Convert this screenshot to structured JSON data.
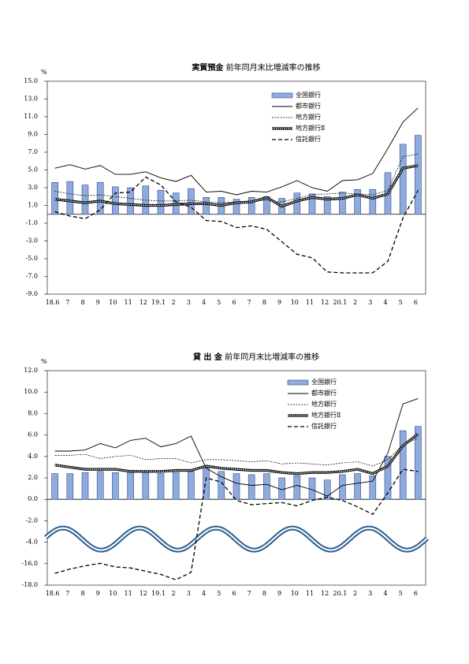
{
  "chart_data": [
    {
      "type": "bar",
      "title": "実質預金",
      "subtitle": "前年同月末比増減率の推移",
      "unit": "%",
      "categories": [
        "18.6",
        "7",
        "8",
        "9",
        "10",
        "11",
        "12",
        "19.1",
        "2",
        "3",
        "4",
        "5",
        "6",
        "7",
        "8",
        "9",
        "10",
        "11",
        "12",
        "20.1",
        "2",
        "3",
        "4",
        "5",
        "6"
      ],
      "ylim": [
        -9,
        15
      ],
      "yticks": [
        {
          "value": 15,
          "label": "15.0"
        },
        {
          "value": 13,
          "label": "13.0"
        },
        {
          "value": 11,
          "label": "11.0"
        },
        {
          "value": 9,
          "label": "9.0"
        },
        {
          "value": 7,
          "label": "7.0"
        },
        {
          "value": 5,
          "label": "5.0"
        },
        {
          "value": 3,
          "label": "3.0"
        },
        {
          "value": 1,
          "label": "1.0"
        },
        {
          "value": -1,
          "label": "-1.0"
        },
        {
          "value": -3,
          "label": "-3.0"
        },
        {
          "value": -5,
          "label": "-5.0"
        },
        {
          "value": -7,
          "label": "-7.0"
        },
        {
          "value": -9,
          "label": "-9.0"
        }
      ],
      "series": [
        {
          "name": "全国銀行",
          "style": "bar",
          "color": "#8faadc",
          "values": [
            3.6,
            3.7,
            3.3,
            3.6,
            3.1,
            3.0,
            3.2,
            2.7,
            2.4,
            2.9,
            1.9,
            1.9,
            1.7,
            1.9,
            2.0,
            1.8,
            2.4,
            2.3,
            2.0,
            2.5,
            2.8,
            2.8,
            4.7,
            7.9,
            8.9
          ]
        },
        {
          "name": "都市銀行",
          "style": "solid",
          "color": "#000000",
          "values": [
            5.2,
            5.6,
            5.1,
            5.5,
            4.5,
            4.5,
            4.8,
            4.1,
            3.7,
            4.4,
            2.5,
            2.6,
            2.2,
            2.6,
            2.5,
            3.1,
            3.8,
            3.0,
            2.6,
            3.8,
            3.9,
            4.6,
            7.4,
            10.4,
            12.0
          ]
        },
        {
          "name": "地方銀行",
          "style": "dotted",
          "color": "#000000",
          "values": [
            2.6,
            2.3,
            2.1,
            2.2,
            2.0,
            1.8,
            1.6,
            1.5,
            1.5,
            1.6,
            1.4,
            1.3,
            1.4,
            1.5,
            1.6,
            1.4,
            1.8,
            2.2,
            2.3,
            2.4,
            2.3,
            2.2,
            2.7,
            6.5,
            6.8
          ]
        },
        {
          "name": "地方銀行Ⅱ",
          "style": "double",
          "color": "#000000",
          "values": [
            1.7,
            1.5,
            1.3,
            1.5,
            1.2,
            1.1,
            1.0,
            1.0,
            1.1,
            1.2,
            1.2,
            1.0,
            1.3,
            1.4,
            1.9,
            0.9,
            1.5,
            1.9,
            1.7,
            1.8,
            2.2,
            1.8,
            2.3,
            5.2,
            5.5
          ]
        },
        {
          "name": "信託銀行",
          "style": "dashed",
          "color": "#000000",
          "values": [
            0.3,
            -0.2,
            -0.5,
            0.5,
            2.4,
            2.5,
            4.2,
            3.3,
            1.4,
            0.8,
            -0.7,
            -0.8,
            -1.5,
            -1.3,
            -1.7,
            -3.1,
            -4.5,
            -4.9,
            -6.5,
            -6.6,
            -6.6,
            -6.6,
            -5.3,
            -0.4,
            2.7
          ]
        }
      ]
    },
    {
      "type": "bar",
      "title": "貸 出 金",
      "subtitle": "前年同月末比増減率の推移",
      "unit": "%",
      "categories": [
        "18.6",
        "7",
        "8",
        "9",
        "10",
        "11",
        "12",
        "19.1",
        "2",
        "3",
        "4",
        "5",
        "6",
        "7",
        "8",
        "9",
        "10",
        "11",
        "12",
        "20.1",
        "2",
        "3",
        "4",
        "5",
        "6"
      ],
      "ylim": [
        -18,
        12
      ],
      "ybreak": [
        -16,
        -4
      ],
      "yticks": [
        {
          "value": 12,
          "label": "12.0"
        },
        {
          "value": 10,
          "label": "10.0"
        },
        {
          "value": 8,
          "label": "8.0"
        },
        {
          "value": 6,
          "label": "6.0"
        },
        {
          "value": 4,
          "label": "4.0"
        },
        {
          "value": 2,
          "label": "2.0"
        },
        {
          "value": 0,
          "label": "0.0"
        },
        {
          "value": -2,
          "label": "-2.0"
        },
        {
          "value": -4,
          "label": "-4.0"
        },
        {
          "value": -16,
          "label": "-16.0"
        },
        {
          "value": -18,
          "label": "-18.0"
        }
      ],
      "series": [
        {
          "name": "全国銀行",
          "style": "bar",
          "color": "#8faadc",
          "values": [
            2.4,
            2.4,
            2.5,
            2.6,
            2.5,
            2.7,
            2.6,
            2.4,
            2.5,
            2.6,
            3.0,
            2.6,
            2.4,
            2.3,
            2.4,
            2.0,
            2.2,
            2.0,
            1.8,
            2.3,
            2.4,
            2.2,
            4.0,
            6.4,
            6.8
          ]
        },
        {
          "name": "都市銀行",
          "style": "solid",
          "color": "#000000",
          "values": [
            4.5,
            4.5,
            4.6,
            5.2,
            4.8,
            5.5,
            5.7,
            4.9,
            5.2,
            5.9,
            2.9,
            2.1,
            1.5,
            1.3,
            1.4,
            0.9,
            1.3,
            0.9,
            0.3,
            1.3,
            1.5,
            1.7,
            4.3,
            8.9,
            9.4
          ]
        },
        {
          "name": "地方銀行",
          "style": "dotted",
          "color": "#000000",
          "values": [
            4.1,
            4.1,
            4.2,
            3.8,
            4.0,
            4.1,
            3.7,
            3.8,
            3.8,
            3.4,
            3.7,
            3.7,
            3.6,
            3.5,
            3.6,
            3.3,
            3.4,
            3.3,
            3.2,
            3.4,
            3.5,
            3.1,
            3.7,
            5.1,
            5.7
          ]
        },
        {
          "name": "地方銀行Ⅱ",
          "style": "double",
          "color": "#000000",
          "values": [
            3.2,
            3.0,
            2.8,
            2.8,
            2.8,
            2.6,
            2.6,
            2.6,
            2.7,
            2.7,
            3.1,
            2.9,
            2.8,
            2.7,
            2.7,
            2.5,
            2.4,
            2.5,
            2.5,
            2.6,
            2.8,
            2.4,
            3.1,
            5.0,
            6.1
          ]
        },
        {
          "name": "信託銀行",
          "style": "dashed",
          "color": "#000000",
          "values": [
            -16.9,
            -16.5,
            -16.2,
            -15.8,
            -16.3,
            -16.4,
            -16.7,
            -17.0,
            -17.5,
            -16.8,
            2.0,
            1.6,
            -0.1,
            -0.5,
            -0.4,
            -0.3,
            -0.6,
            -0.1,
            0.2,
            -0.1,
            -0.7,
            -1.4,
            0.6,
            2.8,
            2.6
          ]
        }
      ]
    }
  ]
}
